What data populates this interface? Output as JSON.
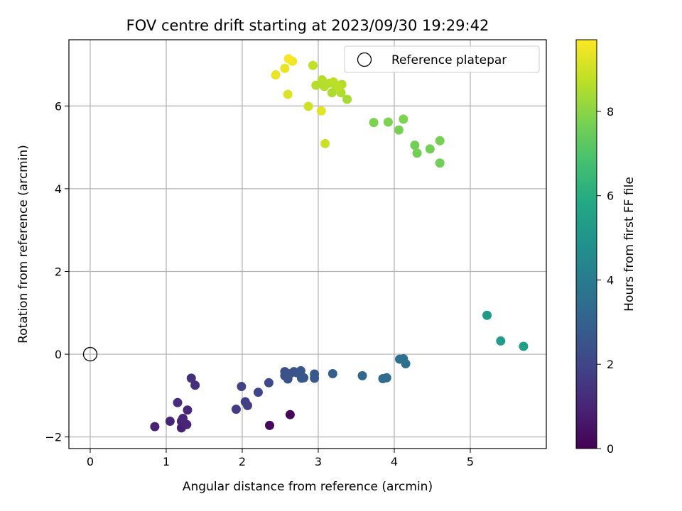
{
  "chart_data": {
    "type": "scatter",
    "title": "FOV centre drift starting at 2023/09/30 19:29:42",
    "xlabel": "Angular distance from reference (arcmin)",
    "ylabel": "Rotation from reference (arcmin)",
    "xlim": [
      -0.28,
      6.0
    ],
    "ylim": [
      -2.28,
      7.6
    ],
    "xticks": [
      0,
      1,
      2,
      3,
      4,
      5
    ],
    "yticks": [
      -2,
      0,
      2,
      4,
      6
    ],
    "grid": true,
    "legend": {
      "placement": "top-right",
      "entries": [
        "Reference platepar"
      ]
    },
    "reference_point": {
      "x": 0,
      "y": 0,
      "label": "Reference platepar"
    },
    "colorbar": {
      "label": "Hours from first FF file",
      "range": [
        0,
        9.7
      ],
      "ticks": [
        0,
        2,
        4,
        6,
        8
      ],
      "colormap": "viridis"
    },
    "points": [
      {
        "x": 2.63,
        "y": -1.46,
        "h": 0.1
      },
      {
        "x": 2.36,
        "y": -1.72,
        "h": 0.2
      },
      {
        "x": 0.85,
        "y": -1.75,
        "h": 0.9
      },
      {
        "x": 1.05,
        "y": -1.62,
        "h": 1.0
      },
      {
        "x": 1.2,
        "y": -1.78,
        "h": 0.9
      },
      {
        "x": 1.2,
        "y": -1.62,
        "h": 1.0
      },
      {
        "x": 1.22,
        "y": -1.55,
        "h": 1.0
      },
      {
        "x": 1.27,
        "y": -1.7,
        "h": 1.0
      },
      {
        "x": 1.28,
        "y": -1.35,
        "h": 1.1
      },
      {
        "x": 1.15,
        "y": -1.17,
        "h": 1.2
      },
      {
        "x": 1.33,
        "y": -0.58,
        "h": 1.3
      },
      {
        "x": 1.38,
        "y": -0.75,
        "h": 1.3
      },
      {
        "x": 1.92,
        "y": -1.33,
        "h": 1.7
      },
      {
        "x": 2.04,
        "y": -1.15,
        "h": 1.8
      },
      {
        "x": 2.07,
        "y": -1.24,
        "h": 1.8
      },
      {
        "x": 1.99,
        "y": -0.78,
        "h": 1.9
      },
      {
        "x": 2.21,
        "y": -0.92,
        "h": 2.0
      },
      {
        "x": 2.35,
        "y": -0.69,
        "h": 2.1
      },
      {
        "x": 2.56,
        "y": -0.42,
        "h": 2.3
      },
      {
        "x": 2.56,
        "y": -0.52,
        "h": 2.4
      },
      {
        "x": 2.6,
        "y": -0.6,
        "h": 2.4
      },
      {
        "x": 2.63,
        "y": -0.47,
        "h": 2.5
      },
      {
        "x": 2.68,
        "y": -0.42,
        "h": 2.5
      },
      {
        "x": 2.72,
        "y": -0.45,
        "h": 2.5
      },
      {
        "x": 2.77,
        "y": -0.4,
        "h": 2.6
      },
      {
        "x": 2.78,
        "y": -0.58,
        "h": 2.6
      },
      {
        "x": 2.81,
        "y": -0.57,
        "h": 2.6
      },
      {
        "x": 2.95,
        "y": -0.48,
        "h": 2.7
      },
      {
        "x": 2.95,
        "y": -0.58,
        "h": 2.7
      },
      {
        "x": 3.19,
        "y": -0.47,
        "h": 2.9
      },
      {
        "x": 3.58,
        "y": -0.52,
        "h": 3.2
      },
      {
        "x": 3.85,
        "y": -0.59,
        "h": 3.4
      },
      {
        "x": 3.9,
        "y": -0.57,
        "h": 3.4
      },
      {
        "x": 4.07,
        "y": -0.12,
        "h": 3.6
      },
      {
        "x": 4.12,
        "y": -0.11,
        "h": 3.6
      },
      {
        "x": 4.15,
        "y": -0.23,
        "h": 3.6
      },
      {
        "x": 5.22,
        "y": 0.94,
        "h": 5.2
      },
      {
        "x": 5.4,
        "y": 0.32,
        "h": 5.3
      },
      {
        "x": 5.7,
        "y": 0.19,
        "h": 5.4
      },
      {
        "x": 4.6,
        "y": 4.62,
        "h": 7.6
      },
      {
        "x": 4.3,
        "y": 4.86,
        "h": 7.6
      },
      {
        "x": 4.27,
        "y": 5.05,
        "h": 7.6
      },
      {
        "x": 4.47,
        "y": 4.96,
        "h": 7.6
      },
      {
        "x": 4.6,
        "y": 5.16,
        "h": 7.7
      },
      {
        "x": 4.06,
        "y": 5.42,
        "h": 7.7
      },
      {
        "x": 3.73,
        "y": 5.6,
        "h": 7.8
      },
      {
        "x": 3.92,
        "y": 5.61,
        "h": 7.8
      },
      {
        "x": 4.12,
        "y": 5.68,
        "h": 7.8
      },
      {
        "x": 3.38,
        "y": 6.16,
        "h": 8.4
      },
      {
        "x": 3.3,
        "y": 6.32,
        "h": 8.5
      },
      {
        "x": 3.18,
        "y": 6.32,
        "h": 8.5
      },
      {
        "x": 3.31,
        "y": 6.52,
        "h": 8.6
      },
      {
        "x": 3.22,
        "y": 6.52,
        "h": 8.6
      },
      {
        "x": 3.15,
        "y": 6.55,
        "h": 8.6
      },
      {
        "x": 3.08,
        "y": 6.47,
        "h": 8.6
      },
      {
        "x": 3.05,
        "y": 6.63,
        "h": 8.6
      },
      {
        "x": 2.97,
        "y": 6.5,
        "h": 8.6
      },
      {
        "x": 3.2,
        "y": 6.58,
        "h": 8.7
      },
      {
        "x": 3.27,
        "y": 6.45,
        "h": 8.7
      },
      {
        "x": 2.93,
        "y": 6.98,
        "h": 8.8
      },
      {
        "x": 3.09,
        "y": 5.09,
        "h": 8.9
      },
      {
        "x": 2.87,
        "y": 5.99,
        "h": 9.0
      },
      {
        "x": 2.6,
        "y": 6.28,
        "h": 9.2
      },
      {
        "x": 3.04,
        "y": 5.88,
        "h": 9.3
      },
      {
        "x": 2.44,
        "y": 6.75,
        "h": 9.4
      },
      {
        "x": 2.56,
        "y": 6.91,
        "h": 9.4
      },
      {
        "x": 2.66,
        "y": 7.08,
        "h": 9.5
      },
      {
        "x": 2.61,
        "y": 7.14,
        "h": 9.6
      }
    ]
  }
}
